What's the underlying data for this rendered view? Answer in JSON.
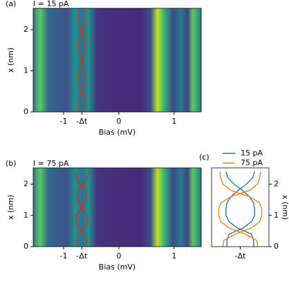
{
  "chart_data": [
    {
      "type": "heatmap",
      "panel": "(a)",
      "title": "I = 15 pA",
      "xlabel": "Bias (mV)",
      "ylabel": "x (nm)",
      "xlim": [
        -1.55,
        1.49
      ],
      "ylim": [
        0,
        2.52
      ],
      "xticks": [
        -1,
        {
          "value": -0.67,
          "label": "-Δt"
        },
        0,
        1
      ],
      "yticks": [
        0,
        1,
        2
      ],
      "overlay": {
        "color": "#e8251f",
        "y": [
          0,
          0.2,
          0.4,
          0.6,
          0.8,
          1.0,
          1.2,
          1.4,
          1.6,
          1.8,
          2.0,
          2.2,
          2.4
        ],
        "branches": [
          [
            -0.62,
            -0.61,
            -0.63,
            -0.7,
            -0.73,
            -0.72,
            -0.68,
            -0.64,
            -0.61,
            -0.63,
            -0.69,
            -0.72,
            -0.73
          ],
          [
            -0.72,
            -0.73,
            -0.71,
            -0.64,
            -0.61,
            -0.62,
            -0.66,
            -0.7,
            -0.73,
            -0.71,
            -0.65,
            -0.62,
            -0.61
          ]
        ]
      }
    },
    {
      "type": "heatmap",
      "panel": "(b)",
      "title": "I = 75 pA",
      "xlabel": "Bias (mV)",
      "ylabel": "x (nm)",
      "xlim": [
        -1.55,
        1.49
      ],
      "ylim": [
        0,
        2.52
      ],
      "xticks": [
        -1,
        {
          "value": -0.67,
          "label": "-Δt"
        },
        0,
        1
      ],
      "yticks": [
        0,
        1,
        2
      ],
      "overlay": {
        "color": "#e8251f",
        "y": [
          0,
          0.2,
          0.4,
          0.6,
          0.8,
          1.0,
          1.2,
          1.4,
          1.6,
          1.8,
          2.0,
          2.2,
          2.4
        ],
        "branches": [
          [
            -0.6,
            -0.58,
            -0.62,
            -0.72,
            -0.78,
            -0.77,
            -0.7,
            -0.62,
            -0.58,
            -0.6,
            -0.7,
            -0.77,
            -0.79
          ],
          [
            -0.74,
            -0.76,
            -0.72,
            -0.62,
            -0.56,
            -0.57,
            -0.64,
            -0.72,
            -0.76,
            -0.74,
            -0.64,
            -0.57,
            -0.55
          ]
        ]
      }
    },
    {
      "type": "line",
      "panel": "(c)",
      "ylabel": "x (nm)",
      "xlim": [
        -0.95,
        -0.39
      ],
      "ylim": [
        0,
        2.52
      ],
      "xticks": [
        {
          "value": -0.67,
          "label": "-Δt"
        }
      ],
      "yticks": [
        0,
        1,
        2
      ],
      "y": [
        0,
        0.2,
        0.4,
        0.6,
        0.8,
        1.0,
        1.2,
        1.4,
        1.6,
        1.8,
        2.0,
        2.2,
        2.4
      ],
      "series": [
        {
          "name": "15 pA",
          "color": "#1f77b4",
          "branches": [
            [
              -0.8,
              -0.8,
              -0.78,
              -0.64,
              -0.56,
              -0.53,
              -0.53,
              -0.54,
              -0.58,
              -0.65,
              -0.73,
              -0.79,
              -0.81
            ],
            [
              -0.54,
              -0.54,
              -0.56,
              -0.7,
              -0.78,
              -0.81,
              -0.81,
              -0.8,
              -0.76,
              -0.69,
              -0.61,
              -0.55,
              -0.53
            ]
          ]
        },
        {
          "name": "75 pA",
          "color": "#ff7f0e",
          "branches": [
            [
              -0.5,
              -0.51,
              -0.62,
              -0.78,
              -0.86,
              -0.88,
              -0.88,
              -0.86,
              -0.76,
              -0.58,
              -0.5,
              -0.48,
              -0.47
            ],
            [
              -0.84,
              -0.83,
              -0.72,
              -0.56,
              -0.48,
              -0.46,
              -0.46,
              -0.48,
              -0.58,
              -0.76,
              -0.84,
              -0.86,
              -0.87
            ]
          ]
        }
      ]
    }
  ]
}
